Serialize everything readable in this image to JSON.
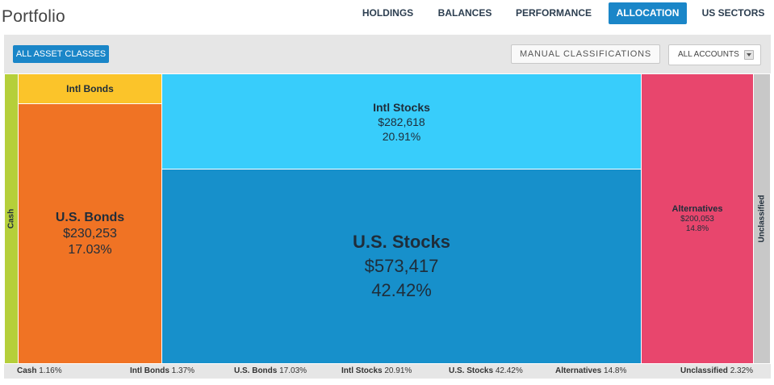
{
  "page": {
    "title": "Portfolio"
  },
  "nav": {
    "tabs": [
      {
        "label": "HOLDINGS",
        "active": false
      },
      {
        "label": "BALANCES",
        "active": false
      },
      {
        "label": "PERFORMANCE",
        "active": false
      },
      {
        "label": "ALLOCATION",
        "active": true
      },
      {
        "label": "US SECTORS",
        "active": false
      }
    ]
  },
  "toolbar": {
    "all_asset_classes_label": "ALL ASSET CLASSES",
    "manual_classifications_label": "MANUAL CLASSIFICATIONS",
    "accounts_select_value": "ALL ACCOUNTS"
  },
  "treemap": {
    "tiles": [
      {
        "name": "Cash",
        "value": "",
        "pct": "",
        "color": "#b5cf3a"
      },
      {
        "name": "Intl Bonds",
        "value": "",
        "pct": "",
        "color": "#fbc42a"
      },
      {
        "name": "U.S. Bonds",
        "value": "$230,253",
        "pct": "17.03%",
        "color": "#f07324"
      },
      {
        "name": "Intl Stocks",
        "value": "$282,618",
        "pct": "20.91%",
        "color": "#38cdfb"
      },
      {
        "name": "U.S. Stocks",
        "value": "$573,417",
        "pct": "42.42%",
        "color": "#1790cb"
      },
      {
        "name": "Alternatives",
        "value": "$200,053",
        "pct": "14.8%",
        "color": "#e8466d"
      },
      {
        "name": "Unclassified",
        "value": "",
        "pct": "",
        "color": "#c8c8c8"
      }
    ]
  },
  "legend": {
    "items": [
      {
        "name": "Cash",
        "pct": "1.16%"
      },
      {
        "name": "Intl Bonds",
        "pct": "1.37%"
      },
      {
        "name": "U.S. Bonds",
        "pct": "17.03%"
      },
      {
        "name": "Intl Stocks",
        "pct": "20.91%"
      },
      {
        "name": "U.S. Stocks",
        "pct": "42.42%"
      },
      {
        "name": "Alternatives",
        "pct": "14.8%"
      },
      {
        "name": "Unclassified",
        "pct": "2.32%"
      }
    ]
  }
}
